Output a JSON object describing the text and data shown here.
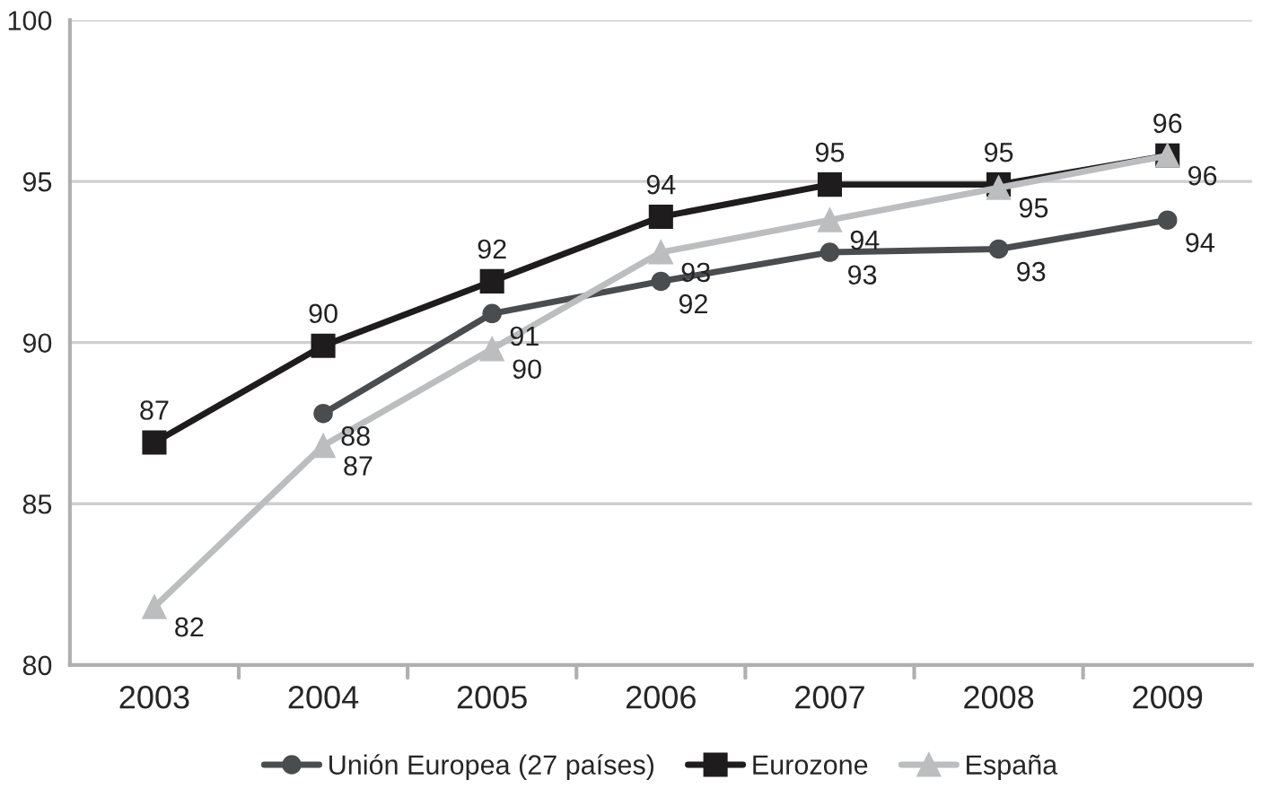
{
  "chart_data": {
    "type": "line",
    "categories": [
      "2003",
      "2004",
      "2005",
      "2006",
      "2007",
      "2008",
      "2009"
    ],
    "series": [
      {
        "name": "Unión Europea (27 países)",
        "color": "#4a4d4f",
        "marker": "circle",
        "values": [
          null,
          87.8,
          90.9,
          91.9,
          92.8,
          92.9,
          93.8
        ],
        "value_labels": [
          null,
          "88",
          "91",
          "92",
          "93",
          "93",
          "94"
        ]
      },
      {
        "name": "Eurozone",
        "color": "#1e1c1d",
        "marker": "square",
        "values": [
          86.9,
          89.9,
          91.9,
          93.9,
          94.9,
          94.9,
          95.8
        ],
        "value_labels": [
          "87",
          "90",
          "92",
          "94",
          "95",
          "95",
          "96"
        ]
      },
      {
        "name": "España",
        "color": "#bcbdbf",
        "marker": "triangle",
        "values": [
          81.8,
          86.8,
          89.8,
          92.8,
          93.8,
          94.8,
          95.8
        ],
        "value_labels": [
          "82",
          "87",
          "90",
          "93",
          "94",
          "95",
          "96"
        ]
      }
    ],
    "ylim": [
      80,
      100
    ],
    "yticks": [
      80,
      85,
      90,
      95,
      100
    ],
    "grid": "y",
    "legend": "bottom"
  }
}
